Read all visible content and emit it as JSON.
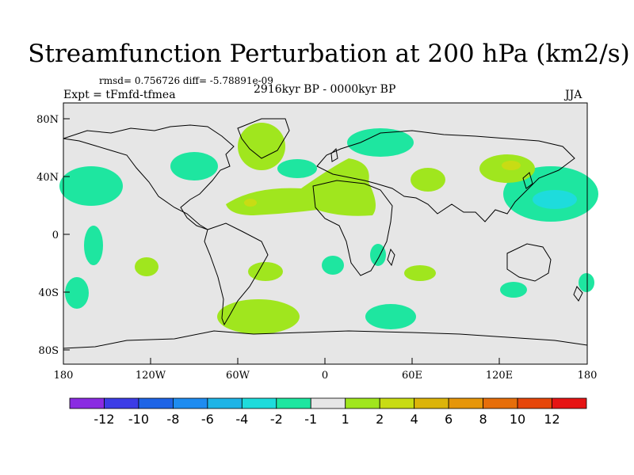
{
  "header": {
    "title": "Streamfunction Perturbation at 200 hPa (km2/s)",
    "stats": "rmsd= 0.756726 diff= -5.78891e-09",
    "experiment": "Expt = tFmfd-tfmea",
    "period": "2916kyr BP - 0000kyr BP",
    "season": "JJA"
  },
  "map": {
    "lat_ticks": [
      "80N",
      "40N",
      "0",
      "40S",
      "80S"
    ],
    "lon_ticks": [
      "180",
      "120W",
      "60W",
      "0",
      "60E",
      "120E",
      "180"
    ],
    "ocean_color": "#e6e6e6",
    "coast_color": "#000000"
  },
  "colorbar": {
    "colors": [
      "#8a2be2",
      "#3c3ce6",
      "#1e64e6",
      "#1e8cf0",
      "#1eb4e6",
      "#1edcdc",
      "#1ee6a0",
      "#e6e6e6",
      "#a0e61e",
      "#c8dc14",
      "#dcb40a",
      "#e6960a",
      "#e66e0a",
      "#e6460a",
      "#e61414"
    ],
    "labels": [
      "-12",
      "-10",
      "-8",
      "-6",
      "-4",
      "-2",
      "-1",
      "1",
      "2",
      "4",
      "6",
      "8",
      "10",
      "12"
    ]
  }
}
